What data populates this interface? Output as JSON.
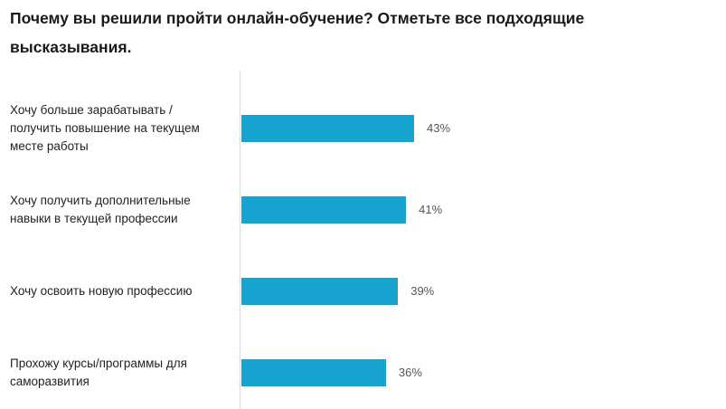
{
  "chart_data": {
    "type": "bar",
    "orientation": "horizontal",
    "title": "Почему вы решили пройти онлайн-обучение? Отметьте все подходящие высказывания.",
    "categories": [
      "Хочу больше зарабатывать / получить повышение на текущем месте работы",
      "Хочу получить дополнительные навыки в текущей профессии",
      "Хочу освоить новую профессию",
      "Прохожу курсы/программы для саморазвития"
    ],
    "values": [
      43,
      41,
      39,
      36
    ],
    "value_labels": [
      "43%",
      "41%",
      "39%",
      "36%"
    ],
    "unit": "%",
    "xlim": [
      0,
      100
    ],
    "grid": false,
    "legend": "none",
    "bar_color": "#17a3d0"
  }
}
